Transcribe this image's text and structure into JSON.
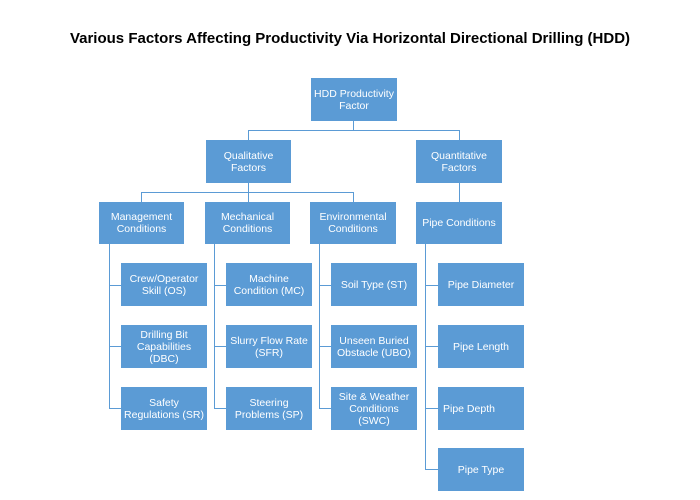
{
  "title": "Various Factors Affecting Productivity Via Horizontal Directional Drilling (HDD)",
  "colors": {
    "box": "#5b9bd5",
    "text": "#ffffff",
    "connector": "#5b9bd5"
  },
  "root": {
    "label": "HDD Productivity Factor"
  },
  "qualitative": {
    "label": "Qualitative Factors",
    "groups": [
      {
        "label": "Management Conditions",
        "items": [
          "Crew/Operator Skill (OS)",
          "Drilling Bit Capabilities (DBC)",
          "Safety Regulations (SR)"
        ]
      },
      {
        "label": "Mechanical Conditions",
        "items": [
          "Machine Condition (MC)",
          "Slurry Flow Rate (SFR)",
          "Steering Problems (SP)"
        ]
      },
      {
        "label": "Environmental Conditions",
        "items": [
          "Soil Type (ST)",
          "Unseen Buried Obstacle (UBO)",
          "Site & Weather Conditions (SWC)"
        ]
      }
    ]
  },
  "quantitative": {
    "label": "Quantitative Factors",
    "groups": [
      {
        "label": "Pipe Conditions",
        "items": [
          "Pipe Diameter",
          "Pipe Length",
          "Pipe Depth",
          "Pipe Type"
        ]
      }
    ]
  }
}
